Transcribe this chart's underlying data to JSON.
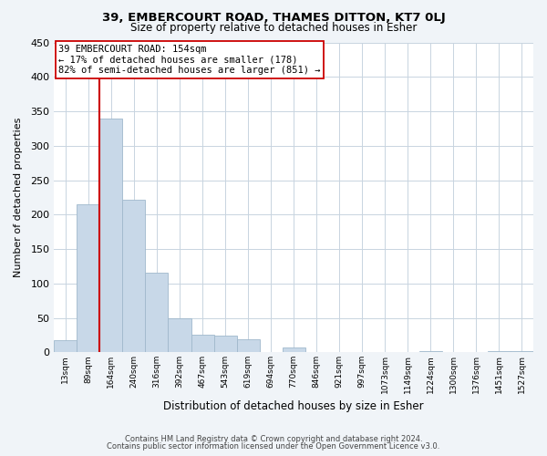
{
  "title1": "39, EMBERCOURT ROAD, THAMES DITTON, KT7 0LJ",
  "title2": "Size of property relative to detached houses in Esher",
  "xlabel": "Distribution of detached houses by size in Esher",
  "ylabel": "Number of detached properties",
  "bar_labels": [
    "13sqm",
    "89sqm",
    "164sqm",
    "240sqm",
    "316sqm",
    "392sqm",
    "467sqm",
    "543sqm",
    "619sqm",
    "694sqm",
    "770sqm",
    "846sqm",
    "921sqm",
    "997sqm",
    "1073sqm",
    "1149sqm",
    "1224sqm",
    "1300sqm",
    "1376sqm",
    "1451sqm",
    "1527sqm"
  ],
  "bar_values": [
    18,
    215,
    340,
    222,
    115,
    50,
    26,
    24,
    19,
    0,
    7,
    0,
    0,
    0,
    0,
    0,
    2,
    0,
    0,
    2,
    2
  ],
  "bar_color": "#c8d8e8",
  "bar_edge_color": "#a0b8cc",
  "redline_bin": 2,
  "annotation_text": "39 EMBERCOURT ROAD: 154sqm\n← 17% of detached houses are smaller (178)\n82% of semi-detached houses are larger (851) →",
  "annotation_box_color": "white",
  "annotation_box_edge": "#cc0000",
  "redline_color": "#cc0000",
  "ylim": [
    0,
    450
  ],
  "yticks": [
    0,
    50,
    100,
    150,
    200,
    250,
    300,
    350,
    400,
    450
  ],
  "footer1": "Contains HM Land Registry data © Crown copyright and database right 2024.",
  "footer2": "Contains public sector information licensed under the Open Government Licence v3.0.",
  "bg_color": "#f0f4f8",
  "plot_bg_color": "white",
  "grid_color": "#c8d4e0"
}
